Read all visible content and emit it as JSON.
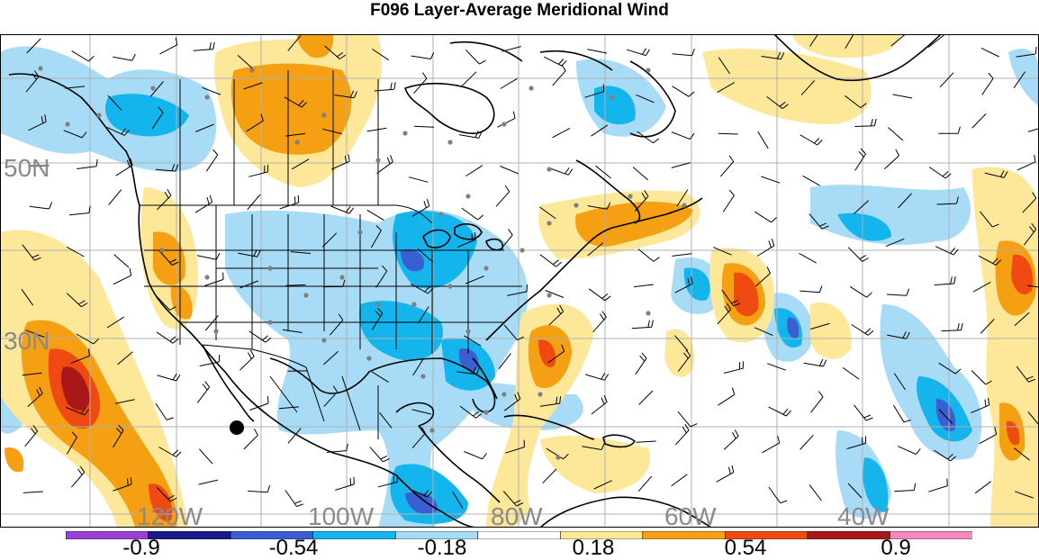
{
  "title": "F096 Layer-Average Meridional Wind",
  "map": {
    "lat_labels": [
      "50N",
      "30N"
    ],
    "lon_labels": [
      "120W",
      "100W",
      "80W",
      "60W",
      "40W"
    ],
    "background": "#ffffff",
    "coastline_color": "#000000",
    "grid_color": "#b0b0b0",
    "station_color": "#808080"
  },
  "colorbar": {
    "colors": [
      "#9b3fd6",
      "#1a1a8c",
      "#3a5fd0",
      "#14b4ec",
      "#a8dcf6",
      "#ffffff",
      "#fde89a",
      "#f59f12",
      "#ee4a12",
      "#a81818",
      "#f38ac0"
    ],
    "tick_labels": [
      "-0.9",
      "-0.54",
      "-0.18",
      "0.18",
      "0.54",
      "0.9"
    ]
  }
}
